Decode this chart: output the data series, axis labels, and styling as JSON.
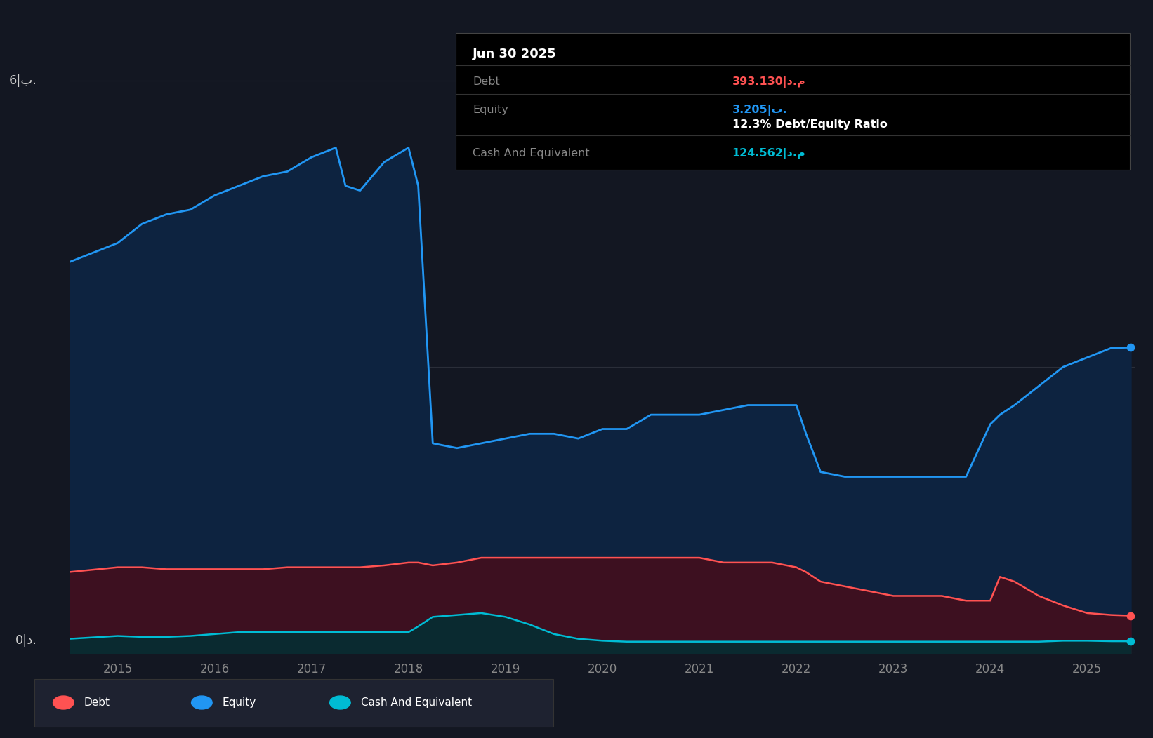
{
  "background_color": "#131722",
  "plot_bg_color": "#131722",
  "grid_color": "#2a2e39",
  "years": [
    2014.5,
    2015.0,
    2015.25,
    2015.5,
    2015.75,
    2016.0,
    2016.25,
    2016.5,
    2016.75,
    2017.0,
    2017.25,
    2017.35,
    2017.5,
    2017.75,
    2018.0,
    2018.1,
    2018.25,
    2018.5,
    2018.75,
    2019.0,
    2019.25,
    2019.5,
    2019.75,
    2020.0,
    2020.25,
    2020.5,
    2020.75,
    2021.0,
    2021.25,
    2021.5,
    2021.75,
    2022.0,
    2022.1,
    2022.25,
    2022.5,
    2022.75,
    2023.0,
    2023.25,
    2023.5,
    2023.75,
    2024.0,
    2024.1,
    2024.25,
    2024.5,
    2024.75,
    2025.0,
    2025.25,
    2025.45
  ],
  "equity": [
    4.1,
    4.3,
    4.5,
    4.6,
    4.65,
    4.8,
    4.9,
    5.0,
    5.05,
    5.2,
    5.3,
    4.9,
    4.85,
    5.15,
    5.3,
    4.9,
    2.2,
    2.15,
    2.2,
    2.25,
    2.3,
    2.3,
    2.25,
    2.35,
    2.35,
    2.5,
    2.5,
    2.5,
    2.55,
    2.6,
    2.6,
    2.6,
    2.3,
    1.9,
    1.85,
    1.85,
    1.85,
    1.85,
    1.85,
    1.85,
    2.4,
    2.5,
    2.6,
    2.8,
    3.0,
    3.1,
    3.2,
    3.205
  ],
  "debt": [
    0.85,
    0.9,
    0.9,
    0.88,
    0.88,
    0.88,
    0.88,
    0.88,
    0.9,
    0.9,
    0.9,
    0.9,
    0.9,
    0.92,
    0.95,
    0.95,
    0.92,
    0.95,
    1.0,
    1.0,
    1.0,
    1.0,
    1.0,
    1.0,
    1.0,
    1.0,
    1.0,
    1.0,
    0.95,
    0.95,
    0.95,
    0.9,
    0.85,
    0.75,
    0.7,
    0.65,
    0.6,
    0.6,
    0.6,
    0.55,
    0.55,
    0.8,
    0.75,
    0.6,
    0.5,
    0.42,
    0.4,
    0.393
  ],
  "cash": [
    0.15,
    0.18,
    0.17,
    0.17,
    0.18,
    0.2,
    0.22,
    0.22,
    0.22,
    0.22,
    0.22,
    0.22,
    0.22,
    0.22,
    0.22,
    0.28,
    0.38,
    0.4,
    0.42,
    0.38,
    0.3,
    0.2,
    0.15,
    0.13,
    0.12,
    0.12,
    0.12,
    0.12,
    0.12,
    0.12,
    0.12,
    0.12,
    0.12,
    0.12,
    0.12,
    0.12,
    0.12,
    0.12,
    0.12,
    0.12,
    0.12,
    0.12,
    0.12,
    0.12,
    0.13,
    0.13,
    0.125,
    0.1246
  ],
  "equity_color": "#2196F3",
  "debt_color": "#FF5252",
  "cash_color": "#00BCD4",
  "equity_fill": "#0d2340",
  "debt_fill": "#3d1020",
  "cash_fill": "#0a2a30",
  "xlim": [
    2014.5,
    2025.5
  ],
  "ylim": [
    0,
    6.5
  ],
  "xtick_years": [
    2015,
    2016,
    2017,
    2018,
    2019,
    2020,
    2021,
    2022,
    2023,
    2024,
    2025
  ],
  "tooltip_title": "Jun 30 2025",
  "tooltip_debt_label": "Debt",
  "tooltip_debt_value": "393.130|د.م",
  "tooltip_equity_label": "Equity",
  "tooltip_equity_value": "3.205|ب.",
  "tooltip_ratio": "12.3% Debt/Equity Ratio",
  "tooltip_cash_label": "Cash And Equivalent",
  "tooltip_cash_value": "124.562|د.م",
  "legend_items": [
    "Debt",
    "Equity",
    "Cash And Equivalent"
  ],
  "legend_colors": [
    "#FF5252",
    "#2196F3",
    "#00BCD4"
  ],
  "ylabel_6b": "6|ب.",
  "ylabel_0d": "0|د."
}
